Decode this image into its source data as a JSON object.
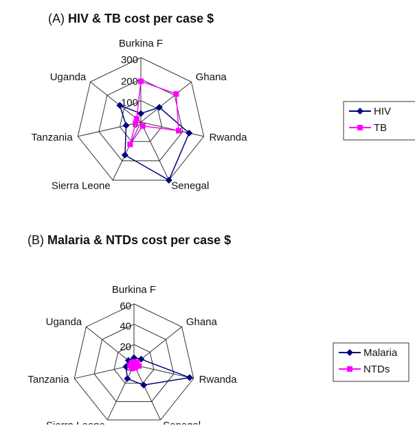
{
  "chart_data": [
    {
      "type": "radar",
      "title_prefix": "(A)",
      "title": "HIV & TB cost per case $",
      "categories": [
        "Burkina F",
        "Ghana",
        "Rwanda",
        "Senegal",
        "Sierra Leone",
        "Tanzania",
        "Uganda"
      ],
      "series": [
        {
          "name": "HIV",
          "color": "#000080",
          "marker": "diamond",
          "values": [
            40,
            110,
            230,
            300,
            170,
            70,
            125
          ]
        },
        {
          "name": "TB",
          "color": "#ff00ff",
          "marker": "square",
          "values": [
            190,
            210,
            180,
            20,
            115,
            25,
            25
          ]
        }
      ],
      "ylim": [
        0,
        300
      ],
      "yticks": [
        0,
        100,
        200,
        300
      ]
    },
    {
      "type": "radar",
      "title_prefix": "(B)",
      "title": "Malaria & NTDs cost per case $",
      "categories": [
        "Burkina F",
        "Ghana",
        "Rwanda",
        "Senegal",
        "Sierra Leone",
        "Tanzania",
        "Uganda"
      ],
      "series": [
        {
          "name": "Malaria",
          "color": "#000080",
          "marker": "diamond",
          "values": [
            7,
            9,
            56,
            22,
            15,
            8,
            7
          ]
        },
        {
          "name": "NTDs",
          "color": "#ff00ff",
          "marker": "square",
          "values": [
            3,
            4,
            5,
            3,
            4,
            4,
            3
          ]
        }
      ],
      "ylim": [
        0,
        60
      ],
      "yticks": [
        0,
        20,
        40,
        60
      ]
    }
  ]
}
